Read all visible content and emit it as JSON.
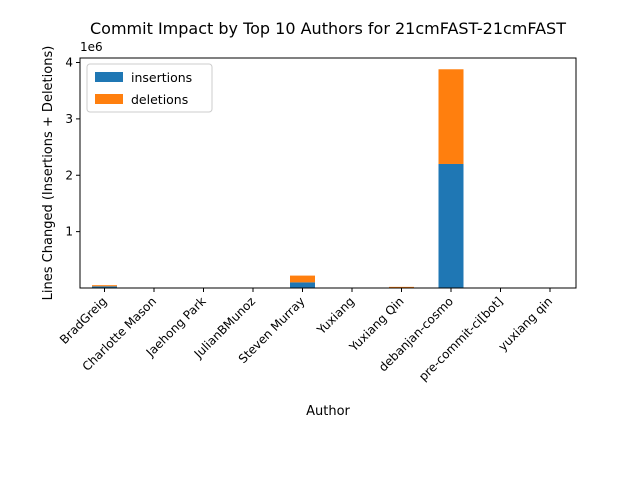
{
  "chart_data": {
    "type": "bar",
    "stacked": true,
    "title": "Commit Impact by Top 10 Authors for 21cmFAST-21cmFAST",
    "xlabel": "Author",
    "ylabel": "Lines Changed (Insertions + Deletions)",
    "y_scale_note": "1e6",
    "ylim": [
      0,
      4000000
    ],
    "yticks": [
      1000000,
      2000000,
      3000000,
      4000000
    ],
    "ytick_labels": [
      "1",
      "2",
      "3",
      "4"
    ],
    "grid": false,
    "legend_position": "upper-left",
    "categories": [
      "BradGreig",
      "Charlotte Mason",
      "Jaehong Park",
      "JulianBMunoz",
      "Steven Murray",
      "Yuxiang",
      "Yuxiang Qin",
      "debanjan-cosmo",
      "pre-commit-ci[bot]",
      "yuxiang qin"
    ],
    "series": [
      {
        "name": "insertions",
        "color": "#1f77b4",
        "values": [
          30000,
          2000,
          1000,
          500,
          100000,
          500,
          8000,
          2200000,
          1000,
          500
        ]
      },
      {
        "name": "deletions",
        "color": "#ff7f0e",
        "values": [
          20000,
          1000,
          500,
          300,
          120000,
          300,
          12000,
          1680000,
          500,
          300
        ]
      }
    ]
  }
}
